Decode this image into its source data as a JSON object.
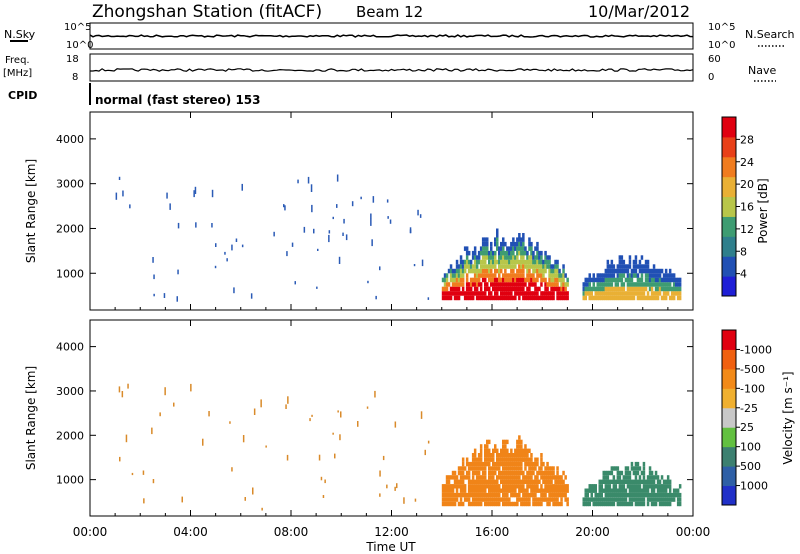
{
  "header": {
    "title": "Zhongshan Station (fitACF)",
    "beam": "Beam 12",
    "date": "10/Mar/2012"
  },
  "top_strip": {
    "left_label": "N.Sky",
    "right_label": "N.Search",
    "y_ticks": [
      "10^5",
      "10^0"
    ]
  },
  "freq_strip": {
    "left_label_1": "Freq.",
    "left_label_2": "[MHz]",
    "right_label": "Nave",
    "left_ticks": [
      "18",
      "8"
    ],
    "right_ticks": [
      "60",
      "0"
    ]
  },
  "cpid": {
    "label": "CPID",
    "text": "normal (fast stereo) 153"
  },
  "chart_data": [
    {
      "type": "heatmap",
      "name": "power",
      "ylabel": "Slant Range [km]",
      "ylim": [
        180,
        4600
      ],
      "yticks": [
        1000,
        2000,
        3000,
        4000
      ],
      "xlim": [
        0,
        24
      ],
      "colorbar_label": "Power [dB]",
      "colorbar_ticks": [
        "4",
        "8",
        "12",
        "16",
        "20",
        "24",
        "28"
      ],
      "colorbar_colors": [
        "#1f1fd6",
        "#2150b4",
        "#2f7f8c",
        "#3e9c72",
        "#b8c64a",
        "#e9b035",
        "#f07c1f",
        "#e84018",
        "#e00010"
      ],
      "colors": {
        "background": "#ffffff",
        "scatter": "#2b5bb6"
      }
    },
    {
      "type": "heatmap",
      "name": "velocity",
      "ylabel": "Slant Range [km]",
      "ylim": [
        180,
        4600
      ],
      "yticks": [
        1000,
        2000,
        3000,
        4000
      ],
      "xlim": [
        0,
        24
      ],
      "xlabel": "Time UT",
      "xtick_labels": [
        "00:00",
        "04:00",
        "08:00",
        "12:00",
        "16:00",
        "20:00",
        "00:00"
      ],
      "colorbar_label": "Velocity [m s⁻¹]",
      "colorbar_ticks": [
        "1000",
        "500",
        "100",
        "25",
        "-25",
        "-100",
        "-500",
        "-1000"
      ],
      "colorbar_colors": [
        "#2030c8",
        "#2e5fa6",
        "#3c8070",
        "#62c040",
        "#c8c8c8",
        "#f0b030",
        "#f28a18",
        "#f06010",
        "#e00010"
      ],
      "colors": {
        "background": "#ffffff",
        "scatter": "#d98a2a",
        "main_band": "#f08418",
        "far_band": "#3a8a6a"
      }
    }
  ]
}
